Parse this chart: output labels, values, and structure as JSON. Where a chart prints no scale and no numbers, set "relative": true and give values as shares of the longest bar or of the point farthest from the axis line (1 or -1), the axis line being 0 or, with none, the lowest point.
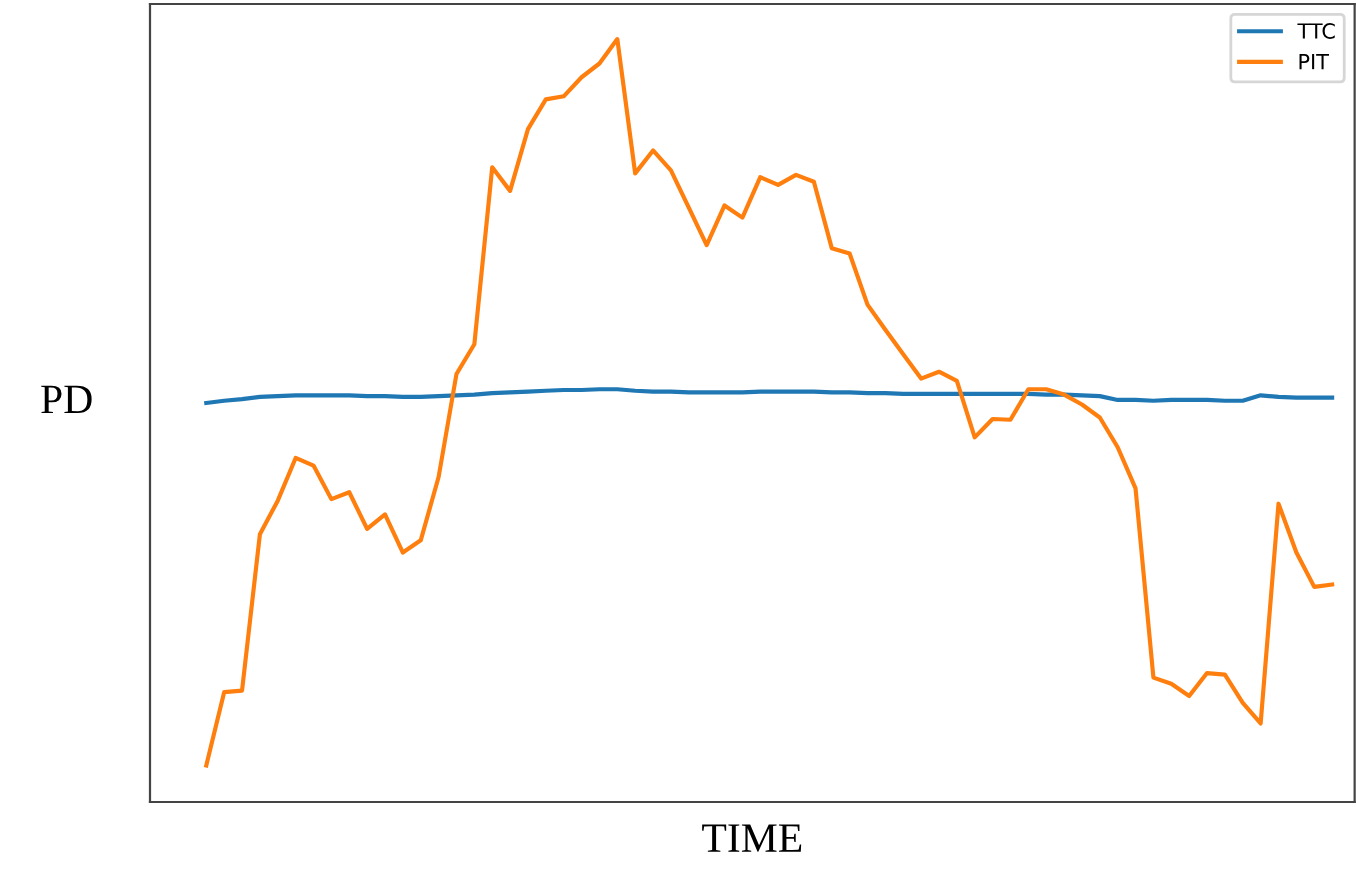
{
  "chart_data": {
    "type": "line",
    "xlabel": "TIME",
    "ylabel": "PD",
    "relative": true,
    "legend": "top right",
    "grid": false,
    "categories": [
      null,
      null,
      null,
      null,
      null,
      null,
      null,
      null,
      null,
      null,
      null,
      null,
      null,
      null,
      null,
      null,
      null,
      null,
      null,
      null,
      null,
      null,
      null,
      null,
      null,
      null,
      null,
      null,
      null,
      null,
      null,
      null,
      null,
      null,
      null,
      null,
      null,
      null,
      null,
      null,
      null,
      null,
      null,
      null,
      null,
      null,
      null,
      null,
      null,
      null,
      null,
      null,
      null,
      null,
      null,
      null,
      null,
      null,
      null,
      null,
      null,
      null,
      null,
      null
    ],
    "series": [
      {
        "name": "TTC",
        "color": "#1f77b4",
        "values": [
          0.523,
          0.526,
          0.528,
          0.531,
          0.532,
          0.533,
          0.533,
          0.533,
          0.533,
          0.532,
          0.532,
          0.531,
          0.531,
          0.532,
          0.533,
          0.534,
          0.536,
          0.537,
          0.538,
          0.539,
          0.54,
          0.54,
          0.541,
          0.541,
          0.539,
          0.538,
          0.538,
          0.537,
          0.537,
          0.537,
          0.537,
          0.538,
          0.538,
          0.538,
          0.538,
          0.537,
          0.537,
          0.536,
          0.536,
          0.535,
          0.535,
          0.535,
          0.535,
          0.535,
          0.535,
          0.535,
          0.535,
          0.534,
          0.534,
          0.533,
          0.532,
          0.527,
          0.527,
          0.526,
          0.527,
          0.527,
          0.527,
          0.526,
          0.526,
          0.533,
          0.531,
          0.53,
          0.53,
          0.53
        ]
      },
      {
        "name": "PIT",
        "color": "#ff7f0e",
        "values": [
          0.048,
          0.144,
          0.146,
          0.351,
          0.395,
          0.451,
          0.441,
          0.397,
          0.406,
          0.358,
          0.377,
          0.327,
          0.343,
          0.426,
          0.561,
          0.6,
          0.832,
          0.801,
          0.882,
          0.921,
          0.925,
          0.95,
          0.968,
          1.0,
          0.824,
          0.854,
          0.828,
          0.779,
          0.73,
          0.782,
          0.766,
          0.819,
          0.809,
          0.822,
          0.813,
          0.726,
          0.719,
          0.652,
          0.619,
          0.587,
          0.555,
          0.564,
          0.552,
          0.478,
          0.502,
          0.501,
          0.541,
          0.541,
          0.534,
          0.521,
          0.504,
          0.465,
          0.411,
          0.163,
          0.155,
          0.139,
          0.169,
          0.167,
          0.13,
          0.103,
          0.391,
          0.327,
          0.282,
          0.285
        ]
      }
    ]
  }
}
